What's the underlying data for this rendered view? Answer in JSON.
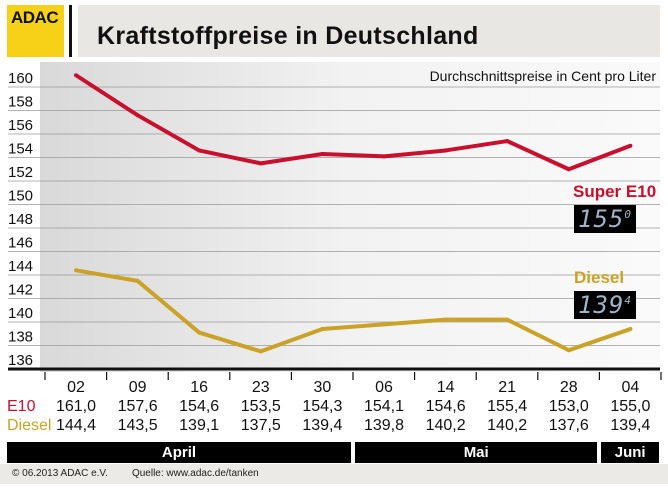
{
  "header": {
    "logo": "ADAC",
    "title": "Kraftstoffpreise in Deutschland",
    "subtitle": "Durchschnittspreise in Cent pro Liter"
  },
  "chart_data": {
    "type": "line",
    "title": "Kraftstoffpreise in Deutschland",
    "subtitle": "Durchschnittspreise in Cent pro Liter",
    "categories": [
      "02",
      "09",
      "16",
      "23",
      "30",
      "06",
      "14",
      "21",
      "28",
      "04"
    ],
    "months": [
      {
        "label": "April",
        "span": 5
      },
      {
        "label": "Mai",
        "span": 4
      },
      {
        "label": "Juni",
        "span": 1
      }
    ],
    "yticks": [
      136,
      138,
      140,
      142,
      144,
      146,
      148,
      150,
      152,
      154,
      156,
      158,
      160
    ],
    "ylim": [
      136,
      160
    ],
    "grid": true,
    "series": [
      {
        "name": "E10",
        "legend": "Super E10",
        "color": "#c8102e",
        "values": [
          161.0,
          157.6,
          154.6,
          153.5,
          154.3,
          154.1,
          154.6,
          155.4,
          153.0,
          155.0
        ],
        "labels": [
          "161,0",
          "157,6",
          "154,6",
          "153,5",
          "154,3",
          "154,1",
          "154,6",
          "155,4",
          "153,0",
          "155,0"
        ],
        "display": "155",
        "display_sup": "0"
      },
      {
        "name": "Diesel",
        "legend": "Diesel",
        "color": "#c9a227",
        "values": [
          144.4,
          143.5,
          139.1,
          137.5,
          139.4,
          139.8,
          140.2,
          140.2,
          137.6,
          139.4
        ],
        "labels": [
          "144,4",
          "143,5",
          "139,1",
          "137,5",
          "139,4",
          "139,8",
          "140,2",
          "140,2",
          "137,6",
          "139,4"
        ],
        "display": "139",
        "display_sup": "4"
      }
    ]
  },
  "footer": {
    "copyright": "© 06.2013  ADAC e.V.",
    "source": "Quelle: www.adac.de/tanken"
  }
}
